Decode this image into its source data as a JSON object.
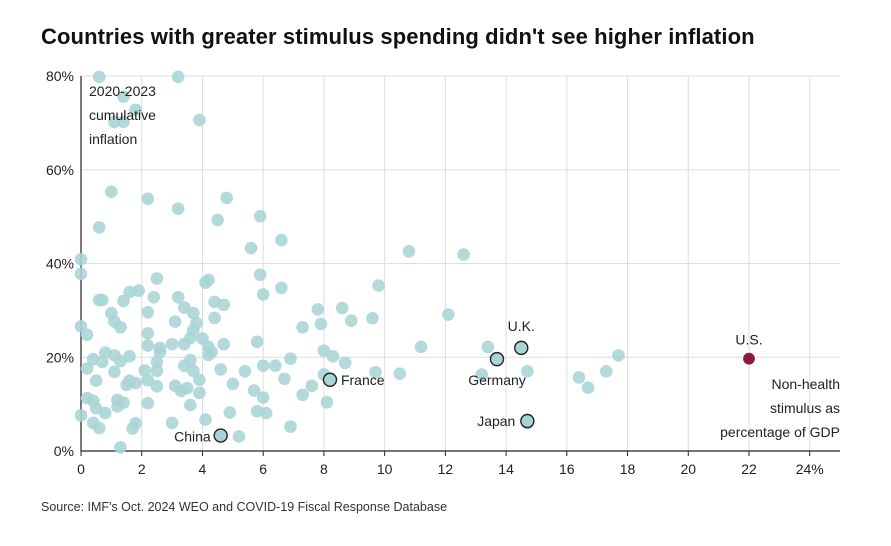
{
  "title": "Countries with greater stimulus spending didn't see higher inflation",
  "source": "Source: IMF's Oct. 2024 WEO and COVID-19 Fiscal Response Database",
  "colors": {
    "dot": "#a9d4d6",
    "highlight": "#8a1a3c",
    "grid": "#dddddd",
    "axis": "#222222",
    "outline": "#222222"
  },
  "chart_data": {
    "type": "scatter",
    "title": "Countries with greater stimulus spending didn't see higher inflation",
    "xlabel": "Non-health stimulus as percentage of GDP",
    "ylabel": "2020-2023 cumulative inflation",
    "xlim": [
      0,
      25
    ],
    "ylim": [
      0,
      80
    ],
    "x_ticks": [
      0,
      2,
      4,
      6,
      8,
      10,
      12,
      14,
      16,
      18,
      20,
      22,
      24
    ],
    "x_tick_labels": [
      "0",
      "2",
      "4",
      "6",
      "8",
      "10",
      "12",
      "14",
      "16",
      "18",
      "20",
      "22",
      "24%"
    ],
    "y_ticks": [
      0,
      20,
      40,
      60,
      80
    ],
    "y_tick_labels": [
      "0%",
      "20%",
      "40%",
      "60%",
      "80%"
    ],
    "y_axis_note": [
      "2020-2023",
      "cumulative",
      "inflation"
    ],
    "x_axis_note": [
      "Non-health",
      "stimulus as",
      "percentage of GDP"
    ],
    "labeled_points": [
      {
        "label": "U.S.",
        "x": 22.0,
        "y": 19.7,
        "highlight": true
      },
      {
        "label": "U.K.",
        "x": 14.5,
        "y": 22.0,
        "highlight": false
      },
      {
        "label": "Germany",
        "x": 13.7,
        "y": 19.6,
        "highlight": false
      },
      {
        "label": "France",
        "x": 8.2,
        "y": 15.2,
        "highlight": false
      },
      {
        "label": "Japan",
        "x": 14.7,
        "y": 6.4,
        "highlight": false
      },
      {
        "label": "China",
        "x": 4.6,
        "y": 3.3,
        "highlight": false
      }
    ],
    "points": [
      [
        0.6,
        79.8
      ],
      [
        3.2,
        79.8
      ],
      [
        1.4,
        75.6
      ],
      [
        1.8,
        72.8
      ],
      [
        1.1,
        70.2
      ],
      [
        1.4,
        70.2
      ],
      [
        3.9,
        70.6
      ],
      [
        1.0,
        55.3
      ],
      [
        2.2,
        53.8
      ],
      [
        4.8,
        54.0
      ],
      [
        3.2,
        51.7
      ],
      [
        4.5,
        49.3
      ],
      [
        5.9,
        50.1
      ],
      [
        0.6,
        47.7
      ],
      [
        6.6,
        45.0
      ],
      [
        5.6,
        43.3
      ],
      [
        10.8,
        42.6
      ],
      [
        12.6,
        41.9
      ],
      [
        0.0,
        40.9
      ],
      [
        0.0,
        37.8
      ],
      [
        5.9,
        37.6
      ],
      [
        2.5,
        36.8
      ],
      [
        4.2,
        36.5
      ],
      [
        4.1,
        35.9
      ],
      [
        9.8,
        35.3
      ],
      [
        6.6,
        34.8
      ],
      [
        1.9,
        34.2
      ],
      [
        1.6,
        33.9
      ],
      [
        6.0,
        33.4
      ],
      [
        3.2,
        32.8
      ],
      [
        2.4,
        32.8
      ],
      [
        0.7,
        32.2
      ],
      [
        0.6,
        32.2
      ],
      [
        1.4,
        32.0
      ],
      [
        4.4,
        31.8
      ],
      [
        4.7,
        31.2
      ],
      [
        3.4,
        30.6
      ],
      [
        7.8,
        30.2
      ],
      [
        8.6,
        30.5
      ],
      [
        2.2,
        29.6
      ],
      [
        1.0,
        29.4
      ],
      [
        3.7,
        29.4
      ],
      [
        4.4,
        28.4
      ],
      [
        9.6,
        28.3
      ],
      [
        12.1,
        29.1
      ],
      [
        1.1,
        27.6
      ],
      [
        3.1,
        27.6
      ],
      [
        7.9,
        27.1
      ],
      [
        8.9,
        27.8
      ],
      [
        3.8,
        27.3
      ],
      [
        0.0,
        26.6
      ],
      [
        1.3,
        26.4
      ],
      [
        7.3,
        26.4
      ],
      [
        3.7,
        25.8
      ],
      [
        2.2,
        25.1
      ],
      [
        0.2,
        24.8
      ],
      [
        3.6,
        24.1
      ],
      [
        4.0,
        24.0
      ],
      [
        5.8,
        23.3
      ],
      [
        4.2,
        22.2
      ],
      [
        4.7,
        22.8
      ],
      [
        2.2,
        22.5
      ],
      [
        3.4,
        22.8
      ],
      [
        2.6,
        22.0
      ],
      [
        11.2,
        22.2
      ],
      [
        13.4,
        22.2
      ],
      [
        3.0,
        22.8
      ],
      [
        2.6,
        21.1
      ],
      [
        4.3,
        21.1
      ],
      [
        8.0,
        21.4
      ],
      [
        4.2,
        20.5
      ],
      [
        0.8,
        21.0
      ],
      [
        1.1,
        20.4
      ],
      [
        1.6,
        20.2
      ],
      [
        8.3,
        20.2
      ],
      [
        6.9,
        19.7
      ],
      [
        17.7,
        20.4
      ],
      [
        0.4,
        19.6
      ],
      [
        0.7,
        19.0
      ],
      [
        1.3,
        19.2
      ],
      [
        3.6,
        19.4
      ],
      [
        2.5,
        19.0
      ],
      [
        8.7,
        18.8
      ],
      [
        0.2,
        17.6
      ],
      [
        2.1,
        17.2
      ],
      [
        2.5,
        17.1
      ],
      [
        4.6,
        17.4
      ],
      [
        3.4,
        18.2
      ],
      [
        3.7,
        17.1
      ],
      [
        6.4,
        18.2
      ],
      [
        6.0,
        18.2
      ],
      [
        5.4,
        17.0
      ],
      [
        1.1,
        16.9
      ],
      [
        8.0,
        16.3
      ],
      [
        9.7,
        16.8
      ],
      [
        10.5,
        16.5
      ],
      [
        13.2,
        16.3
      ],
      [
        14.7,
        17.0
      ],
      [
        17.3,
        17.0
      ],
      [
        16.4,
        15.7
      ],
      [
        0.5,
        15.0
      ],
      [
        1.6,
        15.0
      ],
      [
        2.2,
        15.1
      ],
      [
        3.9,
        15.2
      ],
      [
        6.7,
        15.4
      ],
      [
        1.8,
        14.5
      ],
      [
        1.5,
        14.1
      ],
      [
        2.5,
        13.8
      ],
      [
        3.1,
        13.9
      ],
      [
        3.5,
        13.4
      ],
      [
        5.0,
        14.3
      ],
      [
        7.6,
        13.9
      ],
      [
        16.7,
        13.5
      ],
      [
        5.7,
        12.9
      ],
      [
        3.3,
        12.8
      ],
      [
        3.9,
        12.4
      ],
      [
        7.3,
        12.0
      ],
      [
        0.2,
        11.3
      ],
      [
        0.4,
        10.7
      ],
      [
        1.2,
        10.9
      ],
      [
        1.4,
        10.3
      ],
      [
        1.2,
        9.5
      ],
      [
        2.2,
        10.2
      ],
      [
        3.6,
        9.8
      ],
      [
        6.0,
        11.4
      ],
      [
        8.1,
        10.4
      ],
      [
        0.5,
        9.1
      ],
      [
        0.8,
        8.1
      ],
      [
        0.0,
        7.6
      ],
      [
        4.9,
        8.2
      ],
      [
        5.8,
        8.5
      ],
      [
        6.1,
        8.1
      ],
      [
        4.1,
        6.7
      ],
      [
        0.4,
        6.0
      ],
      [
        1.8,
        5.9
      ],
      [
        3.0,
        6.0
      ],
      [
        0.6,
        4.9
      ],
      [
        1.7,
        4.8
      ],
      [
        6.9,
        5.2
      ],
      [
        14.7,
        5.9
      ],
      [
        5.2,
        3.1
      ],
      [
        1.3,
        0.8
      ]
    ]
  }
}
